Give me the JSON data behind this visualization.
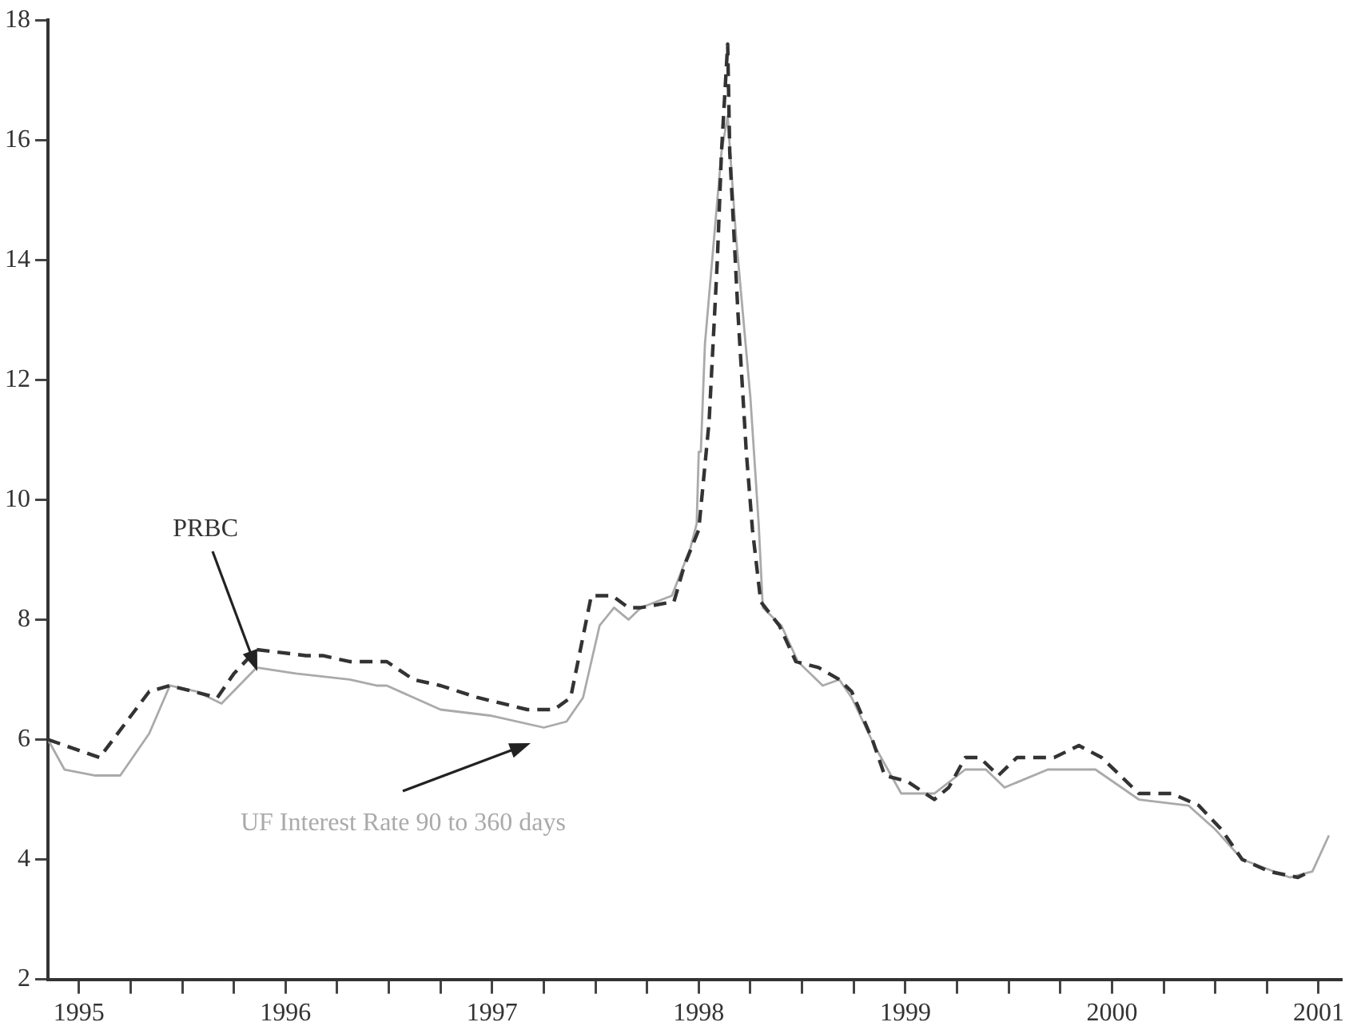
{
  "chart_data": {
    "type": "line",
    "marker": "none",
    "xlim": [
      1994.85,
      2001.11
    ],
    "ylim": [
      2,
      18
    ],
    "xticks": [
      1995,
      {
        "value": 1995.25,
        "label": null
      },
      {
        "value": 1995.5,
        "label": null
      },
      {
        "value": 1995.75,
        "label": null
      },
      1996,
      {
        "value": 1996.25,
        "label": null
      },
      {
        "value": 1996.5,
        "label": null
      },
      {
        "value": 1996.75,
        "label": null
      },
      1997,
      {
        "value": 1997.25,
        "label": null
      },
      {
        "value": 1997.5,
        "label": null
      },
      {
        "value": 1997.75,
        "label": null
      },
      1998,
      {
        "value": 1998.25,
        "label": null
      },
      {
        "value": 1998.5,
        "label": null
      },
      {
        "value": 1998.75,
        "label": null
      },
      1999,
      {
        "value": 1999.25,
        "label": null
      },
      {
        "value": 1999.5,
        "label": null
      },
      {
        "value": 1999.75,
        "label": null
      },
      2000,
      {
        "value": 2000.25,
        "label": null
      },
      {
        "value": 2000.5,
        "label": null
      },
      {
        "value": 2000.75,
        "label": null
      },
      2001
    ],
    "yticks": [
      2,
      4,
      6,
      8,
      10,
      12,
      14,
      16,
      18
    ],
    "series": [
      {
        "name": "PRBC",
        "color": "#333333",
        "line_style": "dashed",
        "x": [
          1994.85,
          1995.1,
          1995.34,
          1995.44,
          1995.67,
          1995.75,
          1995.86,
          1996.1,
          1996.18,
          1996.31,
          1996.42,
          1996.49,
          1996.62,
          1996.75,
          1996.93,
          1997.17,
          1997.3,
          1997.38,
          1997.48,
          1997.58,
          1997.66,
          1997.72,
          1997.88,
          1997.93,
          1998.0,
          1998.05,
          1998.09,
          1998.11,
          1998.14,
          1998.15,
          1998.19,
          1998.23,
          1998.26,
          1998.3,
          1998.39,
          1998.47,
          1998.58,
          1998.68,
          1998.74,
          1998.84,
          1998.9,
          1999.01,
          1999.14,
          1999.21,
          1999.29,
          1999.36,
          1999.45,
          1999.54,
          1999.72,
          1999.84,
          1999.95,
          2000.04,
          2000.13,
          2000.29,
          2000.42,
          2000.53,
          2000.63,
          2000.76,
          2000.9,
          2000.96
        ],
        "values": [
          6.0,
          5.7,
          6.8,
          6.9,
          6.7,
          7.1,
          7.5,
          7.4,
          7.4,
          7.3,
          7.3,
          7.3,
          7.0,
          6.9,
          6.7,
          6.5,
          6.5,
          6.7,
          8.4,
          8.4,
          8.2,
          8.2,
          8.3,
          8.9,
          9.5,
          11.3,
          14.0,
          15.8,
          17.6,
          15.8,
          13.1,
          10.8,
          9.5,
          8.3,
          7.9,
          7.3,
          7.2,
          7.0,
          6.8,
          6.0,
          5.4,
          5.3,
          5.0,
          5.2,
          5.7,
          5.7,
          5.4,
          5.7,
          5.7,
          5.9,
          5.7,
          5.4,
          5.1,
          5.1,
          4.9,
          4.5,
          4.0,
          3.8,
          3.7,
          3.8
        ]
      },
      {
        "name": "UF Interest Rate 90 to 360 days",
        "color": "#aaaaaa",
        "line_style": "solid",
        "x": [
          1994.85,
          1994.93,
          1995.08,
          1995.2,
          1995.34,
          1995.44,
          1995.57,
          1995.69,
          1995.86,
          1996.05,
          1996.31,
          1996.44,
          1996.49,
          1996.75,
          1996.99,
          1997.25,
          1997.36,
          1997.44,
          1997.52,
          1997.59,
          1997.66,
          1997.72,
          1997.87,
          1997.96,
          1997.99,
          1998.0,
          1998.01,
          1998.03,
          1998.11,
          1998.14,
          1998.18,
          1998.25,
          1998.29,
          1998.31,
          1998.4,
          1998.48,
          1998.6,
          1998.68,
          1998.74,
          1998.85,
          1998.98,
          1999.14,
          1999.29,
          1999.39,
          1999.48,
          1999.69,
          1999.92,
          2000.13,
          2000.37,
          2000.5,
          2000.63,
          2000.86,
          2000.97,
          2001.05
        ],
        "values": [
          6.0,
          5.5,
          5.4,
          5.4,
          6.1,
          6.9,
          6.8,
          6.6,
          7.2,
          7.1,
          7.0,
          6.9,
          6.9,
          6.5,
          6.4,
          6.2,
          6.3,
          6.7,
          7.9,
          8.2,
          8.0,
          8.2,
          8.4,
          9.2,
          9.6,
          10.8,
          10.8,
          12.6,
          15.8,
          16.4,
          14.4,
          11.7,
          9.6,
          8.2,
          7.9,
          7.3,
          6.9,
          7.0,
          6.7,
          5.9,
          5.1,
          5.1,
          5.5,
          5.5,
          5.2,
          5.5,
          5.5,
          5.0,
          4.9,
          4.5,
          4.0,
          3.7,
          3.8,
          4.4
        ]
      }
    ]
  }
}
